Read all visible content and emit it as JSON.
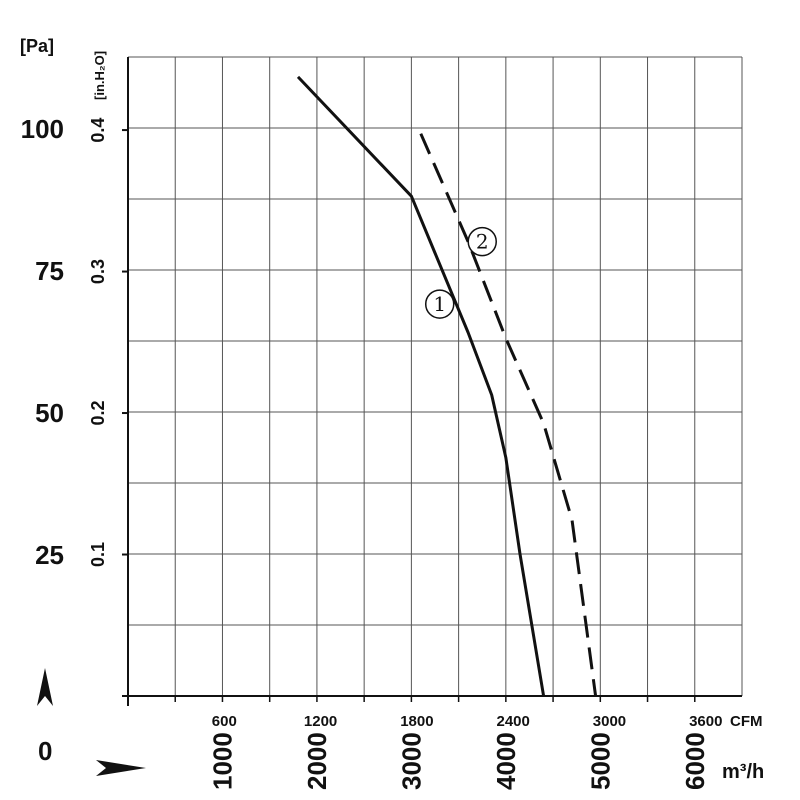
{
  "chart_data": {
    "type": "line",
    "units": {
      "pressure_pa": "[Pa]",
      "pressure_inh2o": "[in.H₂O]",
      "flow_m3h": "m³/h",
      "flow_cfm": "CFM"
    },
    "origin_label": "0",
    "pa_ticks": [
      "25",
      "50",
      "75",
      "100"
    ],
    "pa_tick_values": [
      25,
      50,
      75,
      100
    ],
    "inh2o_ticks": [
      "0.1",
      "0.2",
      "0.3",
      "0.4"
    ],
    "inh2o_tick_values": [
      0.1,
      0.2,
      0.3,
      0.4
    ],
    "m3h_ticks": [
      "1000",
      "2000",
      "3000",
      "4000",
      "5000",
      "6000"
    ],
    "m3h_tick_values": [
      1000,
      2000,
      3000,
      4000,
      5000,
      6000
    ],
    "cfm_ticks": [
      "600",
      "1200",
      "1800",
      "2400",
      "3000",
      "3600"
    ],
    "cfm_tick_values": [
      600,
      1200,
      1800,
      2400,
      3000,
      3600
    ],
    "xlim_m3h": [
      0,
      6500
    ],
    "ylim_pa": [
      0,
      112.5
    ],
    "grid": true,
    "series": [
      {
        "name": "①",
        "style": "solid",
        "color": "#111111",
        "points": [
          {
            "x": 1800,
            "y": 109
          },
          {
            "x": 3000,
            "y": 88
          },
          {
            "x": 3250,
            "y": 78
          },
          {
            "x": 3600,
            "y": 64
          },
          {
            "x": 3850,
            "y": 53
          },
          {
            "x": 4000,
            "y": 42
          },
          {
            "x": 4150,
            "y": 25
          },
          {
            "x": 4400,
            "y": 0
          }
        ]
      },
      {
        "name": "②",
        "style": "dashed",
        "color": "#111111",
        "points": [
          {
            "x": 3100,
            "y": 99
          },
          {
            "x": 3600,
            "y": 80
          },
          {
            "x": 4000,
            "y": 63
          },
          {
            "x": 4400,
            "y": 48
          },
          {
            "x": 4700,
            "y": 31
          },
          {
            "x": 4950,
            "y": 0
          }
        ]
      }
    ]
  }
}
